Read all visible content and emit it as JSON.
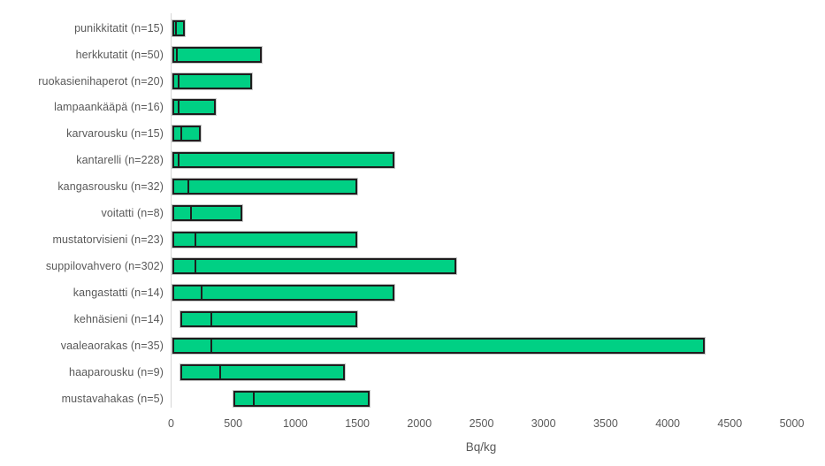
{
  "page": {
    "background": "#ffffff"
  },
  "chart_data": {
    "type": "bar",
    "orientation": "horizontal",
    "subtype": "range-bars-with-median-marker",
    "title": "",
    "xlabel": "Bq/kg",
    "xlim": [
      0,
      5000
    ],
    "xtick_step": 500,
    "xticks": [
      "0",
      "500",
      "1000",
      "1500",
      "2000",
      "2500",
      "3000",
      "3500",
      "4000",
      "4500",
      "5000"
    ],
    "grid": false,
    "legend": false,
    "categories": [
      "punikkitatit (n=15)",
      "herkkutatit (n=50)",
      "ruokasienihaperot (n=20)",
      "lampaankääpä (n=16)",
      "karvarousku (n=15)",
      "kantarelli (n=228)",
      "kangasrousku (n=32)",
      "voitatti (n=8)",
      "mustatorvisieni (n=23)",
      "suppilovahvero (n=302)",
      "kangastatti (n=14)",
      "kehnäsieni (n=14)",
      "vaaleaorakas (n=35)",
      "haaparousku (n=9)",
      "mustavahakas (n=5)"
    ],
    "series": [
      {
        "name": "min",
        "values": [
          10,
          10,
          10,
          10,
          10,
          10,
          10,
          10,
          10,
          10,
          10,
          75,
          10,
          75,
          500
        ]
      },
      {
        "name": "median",
        "values": [
          30,
          40,
          50,
          50,
          75,
          50,
          130,
          150,
          190,
          190,
          240,
          320,
          320,
          390,
          660
        ]
      },
      {
        "name": "max",
        "values": [
          110,
          730,
          650,
          360,
          240,
          1800,
          1500,
          570,
          1500,
          2300,
          1800,
          1500,
          4300,
          1400,
          1600
        ]
      }
    ],
    "colors": {
      "bar_fill": "#00d084",
      "bar_border": "#1e1e1e",
      "bar_outline": "#c9c9c9",
      "axis_line": "#d6d6d6",
      "text": "#595959",
      "background": "#ffffff"
    }
  }
}
